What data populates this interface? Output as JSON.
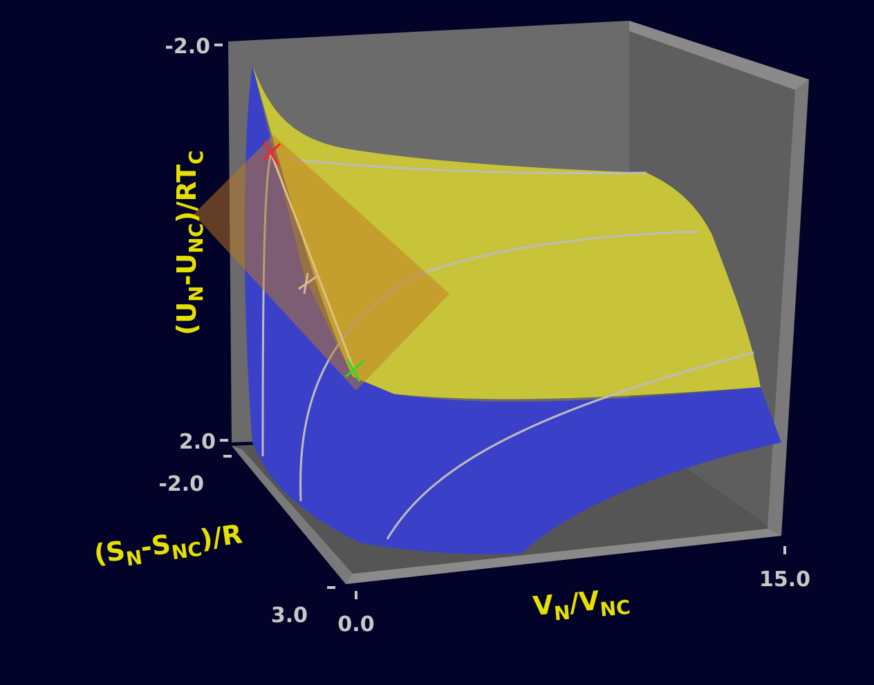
{
  "chart_data": {
    "type": "surface",
    "xlabel": [
      "V",
      "N",
      "/V",
      "NC"
    ],
    "ylabel": [
      "(S",
      "N",
      "-S",
      "NC",
      ")/R"
    ],
    "zlabel": [
      "(U",
      "N",
      "-U",
      "NC",
      ")/RT",
      "C"
    ],
    "xlim": [
      0,
      15
    ],
    "xticks": [
      {
        "value": 0,
        "label": "0.0"
      },
      {
        "value": 15,
        "label": "15.0"
      }
    ],
    "ylim": [
      -2,
      3
    ],
    "yticks": [
      {
        "value": -2,
        "label": "-2.0"
      },
      {
        "value": 3,
        "label": "3.0"
      }
    ],
    "zlim": [
      -2,
      2
    ],
    "zticks": [
      {
        "value": -2,
        "label": "-2.0"
      },
      {
        "value": 2,
        "label": "2.0"
      }
    ]
  }
}
